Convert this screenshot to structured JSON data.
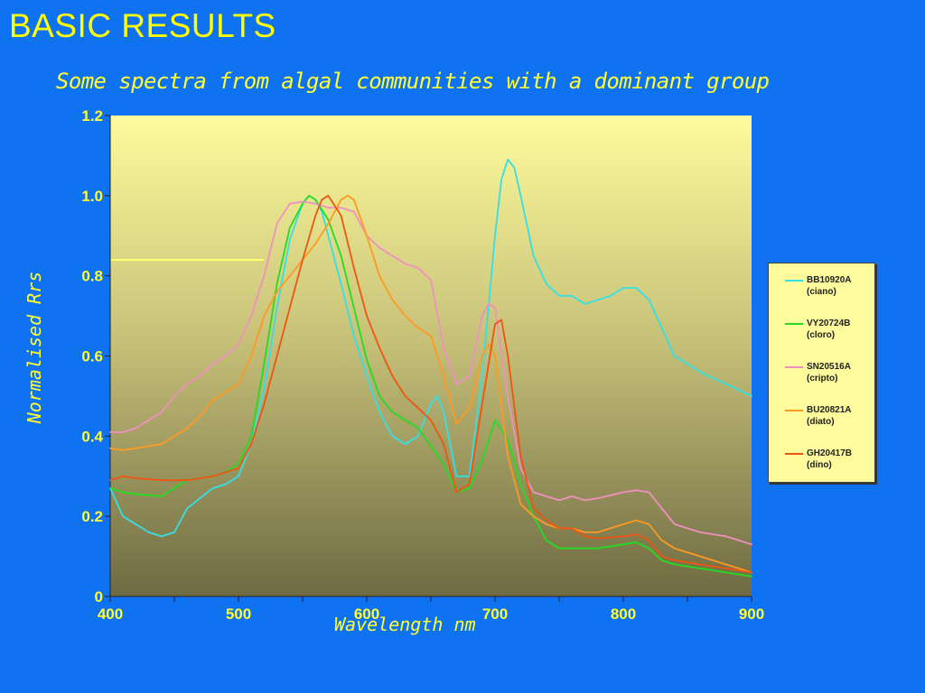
{
  "slide": {
    "title": "BASIC RESULTS",
    "subtitle": "Some spectra from algal communities with a dominant group"
  },
  "chart_data": {
    "type": "line",
    "xlabel": "Wavelength  nm",
    "ylabel": "Normalised  Rrs",
    "xlim": [
      400,
      900
    ],
    "ylim": [
      0,
      1.2
    ],
    "xticks": [
      "400",
      "500",
      "600",
      "700",
      "800",
      "900"
    ],
    "yticks": [
      "0",
      "0.2",
      "0.4",
      "0.6",
      "0.8",
      "1.0",
      "1.2"
    ],
    "legend_position": "right",
    "series": [
      {
        "name": "BB10920A (ciano)",
        "label_lines": [
          "BB10920A",
          "(ciano)"
        ],
        "color": "#33e0e6",
        "x": [
          400,
          410,
          420,
          430,
          440,
          450,
          460,
          480,
          490,
          500,
          510,
          520,
          530,
          540,
          550,
          555,
          560,
          565,
          570,
          580,
          590,
          600,
          610,
          620,
          630,
          640,
          650,
          655,
          660,
          670,
          680,
          690,
          700,
          705,
          710,
          715,
          720,
          730,
          740,
          750,
          760,
          770,
          780,
          790,
          800,
          810,
          820,
          830,
          840,
          860,
          880,
          900
        ],
        "y": [
          0.27,
          0.2,
          0.18,
          0.16,
          0.15,
          0.16,
          0.22,
          0.27,
          0.28,
          0.3,
          0.38,
          0.52,
          0.72,
          0.89,
          0.98,
          1.0,
          0.99,
          0.96,
          0.9,
          0.78,
          0.65,
          0.55,
          0.46,
          0.4,
          0.38,
          0.4,
          0.48,
          0.5,
          0.46,
          0.3,
          0.3,
          0.55,
          0.9,
          1.04,
          1.09,
          1.07,
          1.0,
          0.85,
          0.78,
          0.75,
          0.75,
          0.73,
          0.74,
          0.75,
          0.77,
          0.77,
          0.74,
          0.67,
          0.6,
          0.56,
          0.53,
          0.5
        ]
      },
      {
        "name": "VY20724B (cloro)",
        "label_lines": [
          "VY20724B",
          "(cloro)"
        ],
        "color": "#22dd22",
        "x": [
          400,
          410,
          420,
          440,
          450,
          460,
          480,
          490,
          500,
          510,
          520,
          530,
          540,
          550,
          555,
          560,
          570,
          580,
          590,
          600,
          610,
          620,
          640,
          660,
          670,
          680,
          690,
          700,
          710,
          720,
          730,
          740,
          750,
          760,
          770,
          780,
          800,
          810,
          820,
          830,
          840,
          860,
          880,
          900
        ],
        "y": [
          0.27,
          0.26,
          0.255,
          0.25,
          0.27,
          0.29,
          0.3,
          0.31,
          0.33,
          0.4,
          0.58,
          0.78,
          0.92,
          0.98,
          1.0,
          0.99,
          0.94,
          0.85,
          0.72,
          0.59,
          0.5,
          0.46,
          0.42,
          0.33,
          0.26,
          0.27,
          0.34,
          0.44,
          0.39,
          0.28,
          0.2,
          0.14,
          0.12,
          0.12,
          0.12,
          0.12,
          0.13,
          0.135,
          0.12,
          0.09,
          0.08,
          0.07,
          0.06,
          0.05
        ]
      },
      {
        "name": "SN20516A (cripto)",
        "label_lines": [
          "SN20516A",
          "(cripto)"
        ],
        "color": "#f090c0",
        "x": [
          400,
          410,
          420,
          430,
          440,
          450,
          460,
          470,
          480,
          490,
          500,
          510,
          520,
          530,
          540,
          550,
          560,
          570,
          580,
          590,
          600,
          610,
          620,
          630,
          640,
          650,
          660,
          670,
          680,
          690,
          695,
          700,
          710,
          720,
          730,
          740,
          750,
          760,
          770,
          780,
          800,
          810,
          820,
          830,
          840,
          860,
          880,
          900
        ],
        "y": [
          0.41,
          0.41,
          0.42,
          0.44,
          0.46,
          0.5,
          0.53,
          0.55,
          0.58,
          0.6,
          0.63,
          0.7,
          0.8,
          0.93,
          0.98,
          0.985,
          0.98,
          0.97,
          0.97,
          0.96,
          0.9,
          0.87,
          0.85,
          0.83,
          0.82,
          0.79,
          0.62,
          0.53,
          0.55,
          0.7,
          0.73,
          0.72,
          0.5,
          0.32,
          0.26,
          0.25,
          0.24,
          0.25,
          0.24,
          0.245,
          0.26,
          0.265,
          0.26,
          0.22,
          0.18,
          0.16,
          0.15,
          0.13
        ]
      },
      {
        "name": "BU20821A (diato)",
        "label_lines": [
          "BU20821A",
          "(diato)"
        ],
        "color": "#ff9922",
        "x": [
          400,
          410,
          420,
          440,
          450,
          460,
          470,
          480,
          490,
          500,
          510,
          520,
          530,
          540,
          550,
          560,
          570,
          580,
          585,
          590,
          600,
          610,
          620,
          630,
          640,
          650,
          660,
          670,
          680,
          690,
          695,
          700,
          710,
          720,
          730,
          740,
          750,
          760,
          770,
          780,
          800,
          810,
          820,
          830,
          840,
          860,
          880,
          900
        ],
        "y": [
          0.37,
          0.365,
          0.37,
          0.38,
          0.4,
          0.42,
          0.45,
          0.49,
          0.51,
          0.53,
          0.6,
          0.7,
          0.76,
          0.8,
          0.84,
          0.88,
          0.93,
          0.99,
          1.0,
          0.99,
          0.9,
          0.8,
          0.74,
          0.7,
          0.67,
          0.65,
          0.55,
          0.43,
          0.47,
          0.6,
          0.63,
          0.6,
          0.35,
          0.23,
          0.2,
          0.18,
          0.17,
          0.17,
          0.16,
          0.16,
          0.18,
          0.19,
          0.18,
          0.14,
          0.12,
          0.1,
          0.08,
          0.06
        ]
      },
      {
        "name": "GH20417B (dino)",
        "label_lines": [
          "GH20417B",
          "(dino)"
        ],
        "color": "#ee5511",
        "x": [
          400,
          410,
          420,
          440,
          460,
          480,
          500,
          510,
          520,
          530,
          540,
          550,
          560,
          565,
          570,
          580,
          590,
          600,
          610,
          620,
          630,
          640,
          650,
          660,
          670,
          680,
          690,
          700,
          705,
          710,
          720,
          730,
          740,
          750,
          760,
          770,
          780,
          800,
          810,
          820,
          830,
          840,
          860,
          880,
          900
        ],
        "y": [
          0.29,
          0.3,
          0.295,
          0.29,
          0.29,
          0.3,
          0.32,
          0.38,
          0.48,
          0.6,
          0.72,
          0.84,
          0.95,
          0.99,
          1.0,
          0.95,
          0.82,
          0.7,
          0.62,
          0.55,
          0.5,
          0.47,
          0.44,
          0.38,
          0.26,
          0.28,
          0.48,
          0.68,
          0.69,
          0.6,
          0.35,
          0.22,
          0.19,
          0.17,
          0.17,
          0.15,
          0.145,
          0.15,
          0.155,
          0.14,
          0.1,
          0.09,
          0.08,
          0.07,
          0.06
        ]
      }
    ]
  }
}
